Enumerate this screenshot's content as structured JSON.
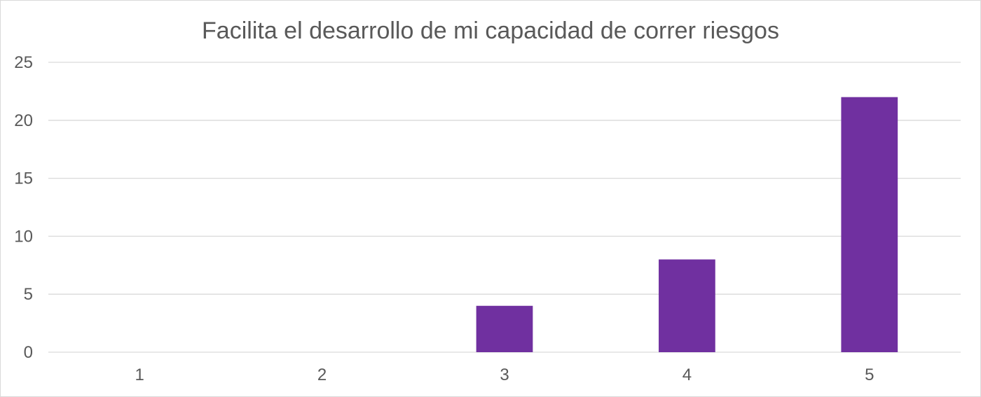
{
  "chart_data": {
    "type": "bar",
    "title": "Facilita el desarrollo de mi capacidad de correr riesgos",
    "xlabel": "",
    "ylabel": "",
    "categories": [
      "1",
      "2",
      "3",
      "4",
      "5"
    ],
    "values": [
      0,
      0,
      4,
      8,
      22
    ],
    "ylim": [
      0,
      25
    ],
    "yticks": [
      "0",
      "5",
      "10",
      "15",
      "20",
      "25"
    ],
    "grid": true,
    "legend": "none",
    "bar_color": "#7030a0"
  }
}
